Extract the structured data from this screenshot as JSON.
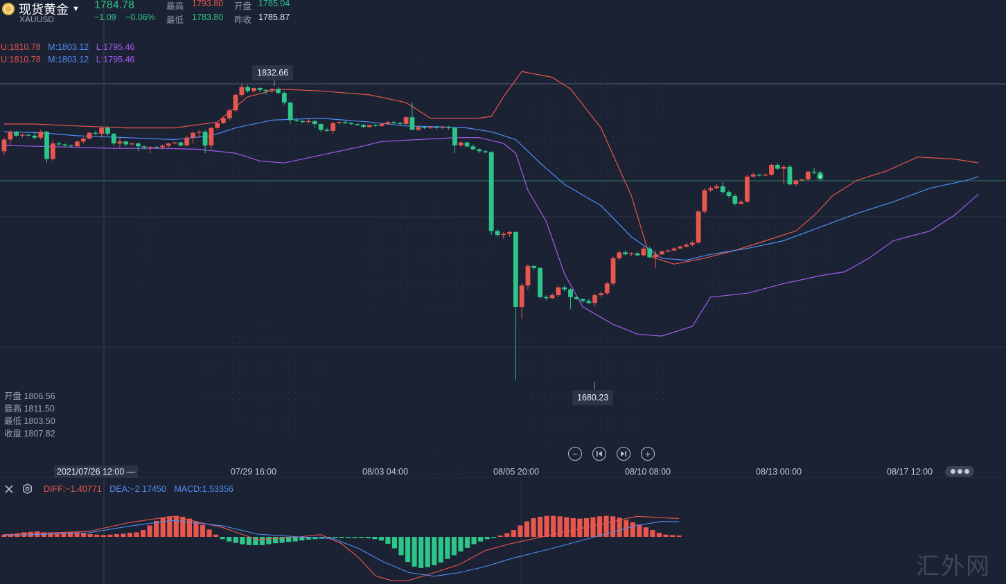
{
  "header": {
    "name": "现货黄金",
    "code": "XAUUSD",
    "last_price": "1784.78",
    "change": "−1.09",
    "change_pct": "−0.06%",
    "high_label": "最高",
    "high": "1793.80",
    "low_label": "最低",
    "low": "1783.80",
    "open_label": "开盘",
    "open": "1785.04",
    "prev_close_label": "昨收",
    "prev_close": "1785.87"
  },
  "bollinger": {
    "line1": {
      "u": "U:1810.78",
      "m": "M:1803.12",
      "l": "L:1795.46"
    },
    "line2": {
      "u": "U:1810.78",
      "m": "M:1803.12",
      "l": "L:1795.46"
    }
  },
  "tooltips": {
    "high_marker": "1832.66",
    "low_marker": "1680.23"
  },
  "ohlc_panel": {
    "open": "开盘 1806.56",
    "high": "最高 1811.50",
    "low": "最低 1803.50",
    "close": "收盘 1807.82"
  },
  "time_axis": {
    "cursor_label": "2021/07/26 12:00 —",
    "ticks": [
      "07/29 16:00",
      "08/03 04:00",
      "08/05 20:00",
      "08/10 08:00",
      "08/13 00:00",
      "08/17 12:00"
    ]
  },
  "controls": [
    "zoom-out",
    "step-back",
    "step-forward",
    "zoom-in"
  ],
  "macd": {
    "diff": "DIFF:−1.40771",
    "dea": "DEA:−2.17450",
    "macd": "MACD:1.53356"
  },
  "watermark": "汇外网",
  "colors": {
    "background": "#1b2233",
    "up": "#e8564d",
    "down": "#2ec58a",
    "boll_upper": "#e8564d",
    "boll_mid": "#4f8ef7",
    "boll_lower": "#a45cf0"
  },
  "chart_data": {
    "type": "candlestick",
    "ylim": [
      1665,
      1845
    ],
    "candles": [
      [
        1798.0,
        1805.0,
        1804.0,
        1796.0
      ],
      [
        1804.0,
        1809.0,
        1808.0,
        1801.0
      ],
      [
        1808.0,
        1808.5,
        1806.0,
        1805.5
      ],
      [
        1806.0,
        1807.0,
        1806.5,
        1805.0
      ],
      [
        1806.5,
        1806.8,
        1806.0,
        1805.5
      ],
      [
        1806.0,
        1808.0,
        1805.0,
        1804.0
      ],
      [
        1805.0,
        1809.0,
        1808.0,
        1804.0
      ],
      [
        1808.0,
        1808.5,
        1794.0,
        1792.0
      ],
      [
        1794.0,
        1804.0,
        1802.0,
        1793.0
      ],
      [
        1802.0,
        1803.0,
        1801.5,
        1801.0
      ],
      [
        1801.5,
        1802.0,
        1801.0,
        1800.0
      ],
      [
        1801.0,
        1801.5,
        1800.5,
        1800.0
      ],
      [
        1800.5,
        1803.5,
        1803.0,
        1800.0
      ],
      [
        1803.0,
        1805.0,
        1804.5,
        1802.0
      ],
      [
        1804.5,
        1808.0,
        1807.5,
        1804.0
      ],
      [
        1807.5,
        1808.5,
        1807.0,
        1806.5
      ],
      [
        1807.0,
        1810.5,
        1810.0,
        1805.0
      ],
      [
        1810.0,
        1811.0,
        1807.0,
        1806.0
      ],
      [
        1807.0,
        1807.5,
        1802.0,
        1801.0
      ],
      [
        1802.0,
        1805.0,
        1803.0,
        1800.0
      ],
      [
        1803.0,
        1803.5,
        1801.5,
        1800.5
      ],
      [
        1801.5,
        1802.5,
        1802.0,
        1801.0
      ],
      [
        1802.0,
        1802.5,
        1800.5,
        1798.0
      ],
      [
        1800.5,
        1801.0,
        1800.0,
        1799.0
      ],
      [
        1800.0,
        1800.5,
        1800.3,
        1797.0
      ],
      [
        1800.3,
        1800.8,
        1800.1,
        1799.5
      ],
      [
        1800.1,
        1801.5,
        1800.8,
        1799.0
      ],
      [
        1800.8,
        1802.5,
        1802.0,
        1800.0
      ],
      [
        1802.0,
        1803.0,
        1802.5,
        1801.5
      ],
      [
        1802.5,
        1803.0,
        1801.0,
        1800.5
      ],
      [
        1801.0,
        1806.0,
        1805.0,
        1800.5
      ],
      [
        1805.0,
        1808.0,
        1807.5,
        1802.0
      ],
      [
        1807.5,
        1809.0,
        1808.0,
        1805.0
      ],
      [
        1808.0,
        1809.0,
        1801.0,
        1797.0
      ],
      [
        1801.0,
        1810.5,
        1810.0,
        1799.0
      ],
      [
        1810.0,
        1813.0,
        1812.5,
        1809.0
      ],
      [
        1812.5,
        1816.0,
        1815.0,
        1812.0
      ],
      [
        1815.0,
        1820.0,
        1819.0,
        1814.0
      ],
      [
        1819.0,
        1828.0,
        1827.0,
        1818.0
      ],
      [
        1827.0,
        1832.66,
        1831.0,
        1826.0
      ],
      [
        1831.0,
        1832.0,
        1829.0,
        1828.0
      ],
      [
        1829.0,
        1831.0,
        1830.5,
        1828.0
      ],
      [
        1830.5,
        1831.0,
        1829.5,
        1828.5
      ],
      [
        1829.5,
        1830.0,
        1829.0,
        1827.0
      ],
      [
        1829.0,
        1830.5,
        1830.0,
        1828.0
      ],
      [
        1830.0,
        1831.0,
        1828.0,
        1827.0
      ],
      [
        1828.0,
        1829.0,
        1823.0,
        1822.0
      ],
      [
        1823.0,
        1823.5,
        1814.0,
        1812.0
      ],
      [
        1814.0,
        1815.0,
        1813.5,
        1813.0
      ],
      [
        1813.5,
        1814.0,
        1813.0,
        1812.5
      ],
      [
        1813.0,
        1815.0,
        1813.5,
        1812.5
      ],
      [
        1813.5,
        1814.0,
        1812.0,
        1810.0
      ],
      [
        1812.0,
        1812.5,
        1809.0,
        1808.0
      ],
      [
        1809.0,
        1810.0,
        1808.5,
        1808.0
      ],
      [
        1808.5,
        1813.0,
        1812.5,
        1807.0
      ],
      [
        1812.5,
        1813.5,
        1813.0,
        1812.0
      ],
      [
        1813.0,
        1813.5,
        1812.5,
        1812.0
      ],
      [
        1812.5,
        1813.0,
        1812.0,
        1811.5
      ],
      [
        1812.0,
        1812.5,
        1811.5,
        1811.0
      ],
      [
        1811.5,
        1812.0,
        1810.5,
        1810.0
      ],
      [
        1810.5,
        1811.0,
        1811.5,
        1810.0
      ],
      [
        1811.5,
        1812.0,
        1811.0,
        1810.5
      ],
      [
        1811.0,
        1812.5,
        1812.0,
        1810.5
      ],
      [
        1812.0,
        1813.5,
        1813.0,
        1811.5
      ],
      [
        1813.0,
        1813.5,
        1812.5,
        1812.0
      ],
      [
        1812.5,
        1813.0,
        1812.0,
        1811.0
      ],
      [
        1812.0,
        1816.0,
        1815.5,
        1811.5
      ],
      [
        1815.5,
        1823.0,
        1809.0,
        1809.0
      ],
      [
        1809.0,
        1811.5,
        1810.5,
        1808.5
      ],
      [
        1810.5,
        1811.0,
        1810.0,
        1809.5
      ],
      [
        1810.0,
        1811.0,
        1810.5,
        1809.5
      ],
      [
        1810.5,
        1811.0,
        1810.0,
        1809.0
      ],
      [
        1810.0,
        1811.0,
        1810.5,
        1809.5
      ],
      [
        1810.5,
        1811.0,
        1810.0,
        1809.0
      ],
      [
        1810.0,
        1810.5,
        1801.0,
        1797.0
      ],
      [
        1801.0,
        1803.0,
        1802.5,
        1800.0
      ],
      [
        1802.5,
        1803.0,
        1800.5,
        1800.0
      ],
      [
        1800.5,
        1801.5,
        1799.0,
        1798.5
      ],
      [
        1799.0,
        1799.5,
        1798.0,
        1797.0
      ],
      [
        1798.0,
        1798.5,
        1797.5,
        1797.0
      ],
      [
        1797.5,
        1798.0,
        1757.0,
        1755.0
      ],
      [
        1757.0,
        1758.0,
        1755.0,
        1754.0
      ],
      [
        1755.0,
        1756.5,
        1755.5,
        1753.0
      ],
      [
        1755.5,
        1757.0,
        1756.5,
        1754.0
      ],
      [
        1756.5,
        1756.8,
        1718.0,
        1680.23
      ],
      [
        1718.0,
        1730.0,
        1729.0,
        1712.0
      ],
      [
        1729.0,
        1740.0,
        1739.0,
        1727.0
      ],
      [
        1739.0,
        1739.5,
        1738.0,
        1737.0
      ],
      [
        1738.0,
        1738.5,
        1723.0,
        1722.0
      ],
      [
        1723.0,
        1724.0,
        1722.5,
        1721.5
      ],
      [
        1722.5,
        1725.0,
        1724.0,
        1722.0
      ],
      [
        1724.0,
        1729.0,
        1728.0,
        1723.0
      ],
      [
        1728.0,
        1729.0,
        1727.0,
        1726.0
      ],
      [
        1727.0,
        1727.5,
        1723.0,
        1717.0
      ],
      [
        1723.0,
        1723.5,
        1722.0,
        1721.5
      ],
      [
        1722.0,
        1722.5,
        1721.0,
        1720.0
      ],
      [
        1721.0,
        1722.0,
        1720.0,
        1719.5
      ],
      [
        1720.0,
        1725.0,
        1724.0,
        1718.0
      ],
      [
        1724.0,
        1726.0,
        1725.0,
        1723.0
      ],
      [
        1725.0,
        1731.0,
        1730.0,
        1724.0
      ],
      [
        1730.0,
        1744.0,
        1743.0,
        1729.0
      ],
      [
        1743.0,
        1747.0,
        1746.0,
        1742.0
      ],
      [
        1746.0,
        1747.0,
        1745.0,
        1744.5
      ],
      [
        1745.0,
        1746.0,
        1745.5,
        1744.0
      ],
      [
        1745.5,
        1746.5,
        1744.5,
        1744.0
      ],
      [
        1744.5,
        1749.0,
        1748.0,
        1744.0
      ],
      [
        1748.0,
        1749.0,
        1743.5,
        1743.0
      ],
      [
        1743.5,
        1747.0,
        1745.0,
        1738.0
      ],
      [
        1745.0,
        1747.0,
        1746.5,
        1744.5
      ],
      [
        1746.5,
        1747.5,
        1747.0,
        1746.0
      ],
      [
        1747.0,
        1748.5,
        1748.0,
        1746.5
      ],
      [
        1748.0,
        1749.5,
        1749.0,
        1747.5
      ],
      [
        1749.0,
        1751.0,
        1750.0,
        1748.5
      ],
      [
        1750.0,
        1752.0,
        1751.0,
        1749.0
      ],
      [
        1751.0,
        1768.0,
        1767.0,
        1750.5
      ],
      [
        1767.0,
        1779.0,
        1778.0,
        1766.0
      ],
      [
        1778.0,
        1780.0,
        1779.0,
        1777.0
      ],
      [
        1779.0,
        1781.0,
        1780.0,
        1778.5
      ],
      [
        1780.0,
        1782.0,
        1777.0,
        1776.0
      ],
      [
        1777.0,
        1778.0,
        1775.0,
        1774.0
      ],
      [
        1775.0,
        1776.0,
        1771.0,
        1770.0
      ],
      [
        1771.0,
        1773.0,
        1772.0,
        1770.5
      ],
      [
        1772.0,
        1786.0,
        1785.0,
        1771.5
      ],
      [
        1785.0,
        1787.0,
        1786.0,
        1784.5
      ],
      [
        1786.0,
        1786.5,
        1785.5,
        1785.0
      ],
      [
        1785.5,
        1786.5,
        1786.0,
        1785.0
      ],
      [
        1786.0,
        1791.5,
        1791.0,
        1785.5
      ],
      [
        1791.0,
        1792.0,
        1789.0,
        1788.5
      ],
      [
        1789.0,
        1791.0,
        1790.0,
        1781.0
      ],
      [
        1790.0,
        1791.0,
        1781.0,
        1780.5
      ],
      [
        1781.0,
        1783.5,
        1783.0,
        1780.0
      ],
      [
        1783.0,
        1784.0,
        1783.5,
        1782.5
      ],
      [
        1783.5,
        1788.0,
        1787.5,
        1783.0
      ],
      [
        1787.5,
        1789.5,
        1787.0,
        1786.0
      ],
      [
        1787.0,
        1788.0,
        1784.78,
        1783.8
      ]
    ],
    "boll_upper": [
      [
        0,
        1812
      ],
      [
        5,
        1812
      ],
      [
        12,
        1811
      ],
      [
        20,
        1810
      ],
      [
        28,
        1810
      ],
      [
        35,
        1813
      ],
      [
        40,
        1826
      ],
      [
        45,
        1830
      ],
      [
        52,
        1829
      ],
      [
        60,
        1827
      ],
      [
        66,
        1823
      ],
      [
        70,
        1815
      ],
      [
        75,
        1815
      ],
      [
        78,
        1815
      ],
      [
        80,
        1816
      ],
      [
        82,
        1826
      ],
      [
        85,
        1839
      ],
      [
        90,
        1836
      ],
      [
        93,
        1830
      ],
      [
        98,
        1810
      ],
      [
        103,
        1775
      ],
      [
        106,
        1744
      ],
      [
        110,
        1740
      ],
      [
        115,
        1743
      ],
      [
        120,
        1747
      ],
      [
        125,
        1752
      ],
      [
        130,
        1757
      ],
      [
        133,
        1765
      ],
      [
        136,
        1775
      ],
      [
        140,
        1783
      ],
      [
        145,
        1788
      ],
      [
        150,
        1795
      ],
      [
        156,
        1794
      ],
      [
        160,
        1792
      ]
    ],
    "boll_mid": [
      [
        0,
        1808
      ],
      [
        6,
        1807.5
      ],
      [
        12,
        1806
      ],
      [
        20,
        1805
      ],
      [
        28,
        1804
      ],
      [
        34,
        1806
      ],
      [
        38,
        1810
      ],
      [
        44,
        1814
      ],
      [
        52,
        1815
      ],
      [
        60,
        1813
      ],
      [
        66,
        1811
      ],
      [
        72,
        1810.5
      ],
      [
        76,
        1810
      ],
      [
        80,
        1808
      ],
      [
        84,
        1804
      ],
      [
        88,
        1792
      ],
      [
        92,
        1781
      ],
      [
        98,
        1770
      ],
      [
        103,
        1754
      ],
      [
        108,
        1743
      ],
      [
        112,
        1742
      ],
      [
        116,
        1745
      ],
      [
        122,
        1748
      ],
      [
        128,
        1752
      ],
      [
        134,
        1759
      ],
      [
        140,
        1766
      ],
      [
        146,
        1772
      ],
      [
        152,
        1779
      ],
      [
        158,
        1783
      ],
      [
        160,
        1785
      ]
    ],
    "boll_lower": [
      [
        0,
        1801
      ],
      [
        6,
        1800.5
      ],
      [
        12,
        1800
      ],
      [
        18,
        1799.5
      ],
      [
        26,
        1799.5
      ],
      [
        32,
        1799
      ],
      [
        38,
        1797
      ],
      [
        42,
        1793
      ],
      [
        46,
        1792
      ],
      [
        52,
        1796
      ],
      [
        58,
        1800
      ],
      [
        62,
        1803
      ],
      [
        68,
        1804
      ],
      [
        74,
        1805
      ],
      [
        78,
        1805
      ],
      [
        82,
        1802
      ],
      [
        84,
        1797
      ],
      [
        86,
        1778
      ],
      [
        89,
        1762
      ],
      [
        92,
        1735
      ],
      [
        95,
        1718
      ],
      [
        100,
        1709
      ],
      [
        104,
        1704
      ],
      [
        108,
        1703
      ],
      [
        113,
        1708
      ],
      [
        116,
        1723
      ],
      [
        122,
        1725
      ],
      [
        128,
        1730
      ],
      [
        134,
        1734
      ],
      [
        138,
        1736
      ],
      [
        142,
        1743
      ],
      [
        146,
        1752
      ],
      [
        152,
        1757
      ],
      [
        156,
        1765
      ],
      [
        160,
        1776
      ]
    ],
    "macd_hist": [
      0.5,
      0.6,
      0.8,
      1.0,
      1.1,
      1.2,
      1.0,
      0.9,
      0.8,
      0.9,
      1.0,
      1.0,
      0.8,
      0.6,
      0.5,
      0.4,
      0.5,
      0.6,
      0.7,
      0.9,
      1.0,
      1.5,
      2.5,
      3.5,
      4.2,
      4.5,
      4.6,
      4.4,
      4.0,
      3.4,
      2.6,
      1.6,
      0.5,
      -0.5,
      -1.0,
      -1.3,
      -1.6,
      -1.8,
      -1.8,
      -1.8,
      -1.6,
      -1.4,
      -1.3,
      -1.1,
      -1.0,
      -0.8,
      -0.6,
      -0.5,
      -0.4,
      -0.3,
      -0.2,
      -0.2,
      -0.2,
      -0.1,
      -0.2,
      -0.3,
      -0.5,
      -0.8,
      -1.5,
      -2.5,
      -4.0,
      -5.5,
      -6.5,
      -6.8,
      -6.6,
      -6.2,
      -5.6,
      -4.8,
      -4.0,
      -3.2,
      -2.4,
      -1.6,
      -1.0,
      -0.5,
      -0.2,
      0.3,
      0.8,
      1.5,
      2.5,
      3.4,
      4.1,
      4.4,
      4.6,
      4.6,
      4.5,
      4.3,
      4.1,
      4.0,
      4.1,
      4.3,
      4.5,
      4.6,
      4.5,
      4.2,
      3.7,
      3.2,
      2.7,
      2.1,
      1.5,
      0.9,
      0.5,
      0.4,
      0.3
    ],
    "diff_line": [
      [
        0,
        0.5
      ],
      [
        20,
        1.2
      ],
      [
        30,
        3.2
      ],
      [
        40,
        4.5
      ],
      [
        52,
        2.0
      ],
      [
        60,
        -0.6
      ],
      [
        70,
        0.0
      ],
      [
        75,
        0.5
      ],
      [
        80,
        -1.5
      ],
      [
        84,
        -4.5
      ],
      [
        88,
        -8.5
      ],
      [
        92,
        -9.6
      ],
      [
        96,
        -9.5
      ],
      [
        102,
        -7.8
      ],
      [
        108,
        -6.0
      ],
      [
        114,
        -3.0
      ],
      [
        120,
        -1.5
      ],
      [
        130,
        0.5
      ],
      [
        140,
        2.5
      ],
      [
        150,
        4.5
      ],
      [
        160,
        4.0
      ]
    ],
    "dea_line": [
      [
        0,
        0.3
      ],
      [
        20,
        0.9
      ],
      [
        30,
        2.4
      ],
      [
        40,
        3.6
      ],
      [
        52,
        2.4
      ],
      [
        60,
        0.6
      ],
      [
        70,
        0.0
      ],
      [
        78,
        -0.4
      ],
      [
        84,
        -2.5
      ],
      [
        90,
        -5.5
      ],
      [
        96,
        -7.8
      ],
      [
        102,
        -8.6
      ],
      [
        108,
        -7.8
      ],
      [
        114,
        -6.5
      ],
      [
        120,
        -4.8
      ],
      [
        130,
        -2.5
      ],
      [
        140,
        0.0
      ],
      [
        150,
        2.5
      ],
      [
        156,
        3.4
      ],
      [
        160,
        3.3
      ]
    ]
  }
}
